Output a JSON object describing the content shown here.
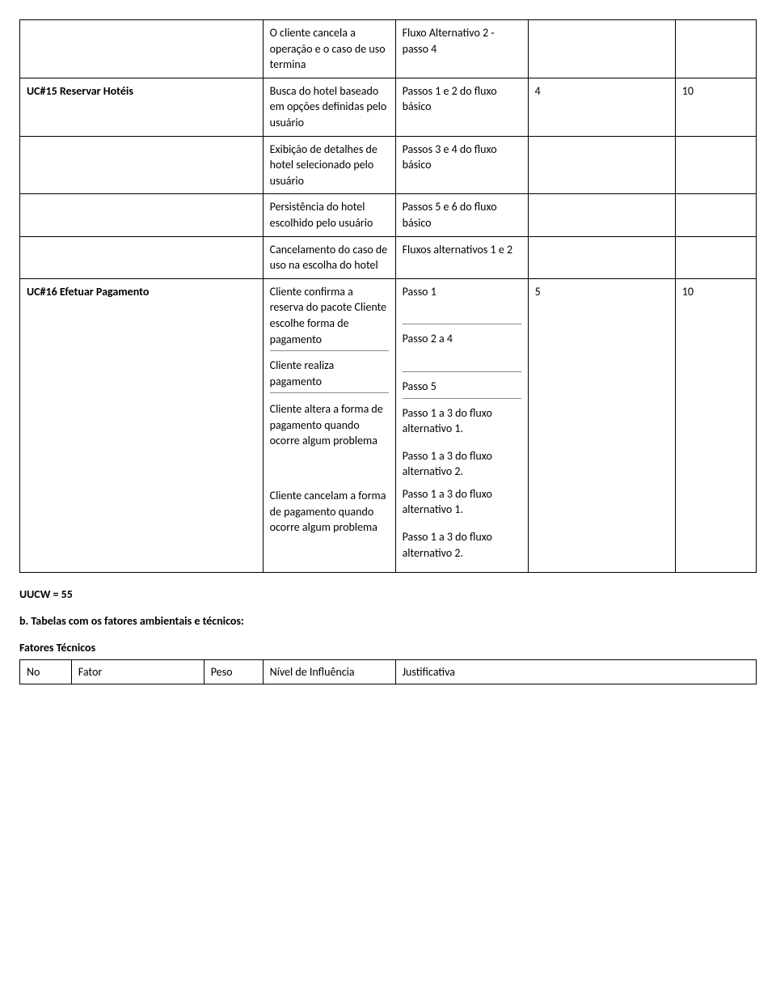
{
  "table1": {
    "rows": [
      {
        "c1": "",
        "c2_paras": [
          "O cliente cancela a operação e o caso de uso termina"
        ],
        "c3_paras": [
          "Fluxo Alternativo 2 - passo 4"
        ],
        "c4": "",
        "c5": ""
      },
      {
        "c1": "UC#15 Reservar Hotéis",
        "c1_bold": true,
        "c2_paras": [
          "Busca do hotel baseado em opções definidas pelo usuário"
        ],
        "c3_paras": [
          "Passos 1 e 2 do fluxo básico"
        ],
        "c4": "4",
        "c5": "10"
      },
      {
        "c1": "",
        "c2_paras": [
          "Exibição de detalhes de hotel selecionado pelo usuário"
        ],
        "c3_paras": [
          "Passos 3 e 4 do fluxo básico"
        ],
        "c4": "",
        "c5": ""
      },
      {
        "c1": "",
        "c2_paras": [
          "Persistência do hotel escolhido pelo usuário"
        ],
        "c3_paras": [
          "Passos 5 e 6 do fluxo básico"
        ],
        "c4": "",
        "c5": ""
      },
      {
        "c1": "",
        "c2_paras": [
          "Cancelamento do caso de uso na escolha do hotel"
        ],
        "c3_paras": [
          "Fluxos alternativos 1 e 2"
        ],
        "c4": "",
        "c5": ""
      },
      {
        "c1": "UC#16 Efetuar Pagamento",
        "c1_bold": true,
        "c2_blocks": [
          {
            "text": "Cliente confirma a reserva do pacote Cliente escolhe forma de pagamento",
            "underline": true
          },
          {
            "text": "Cliente realiza pagamento",
            "underline": true
          },
          {
            "text": "Cliente altera a forma de pagamento quando ocorre algum problema",
            "underline": false,
            "spacer": true
          },
          {
            "text": "Cliente cancelam a forma de pagamento quando ocorre algum problema",
            "underline": false,
            "spacer_big": true
          }
        ],
        "c3_blocks": [
          {
            "text": "Passo 1",
            "underline": true,
            "pad_below": true
          },
          {
            "text": "Passo 2 a 4",
            "underline": true,
            "pad_below": true
          },
          {
            "text": "Passo 5",
            "underline": true
          },
          {
            "text": "Passo 1 a 3 do fluxo alternativo 1.",
            "underline": false
          },
          {
            "text": "Passo 1 a 3 do fluxo alternativo 2.",
            "underline": false,
            "spacer": true
          },
          {
            "text": "Passo 1 a 3 do fluxo alternativo 1.",
            "underline": false
          },
          {
            "text": "Passo 1 a 3 do fluxo alternativo 2.",
            "underline": false,
            "spacer": true
          }
        ],
        "c4": "5",
        "c5": "10"
      }
    ]
  },
  "uucw_line": "UUCW = 55",
  "section_b": "b. Tabelas com os fatores ambientais e técnicos:",
  "fatores_title": "Fatores Técnicos",
  "table2": {
    "headers": [
      "No",
      "Fator",
      "Peso",
      "Nível de Influência",
      "Justificativa"
    ]
  }
}
